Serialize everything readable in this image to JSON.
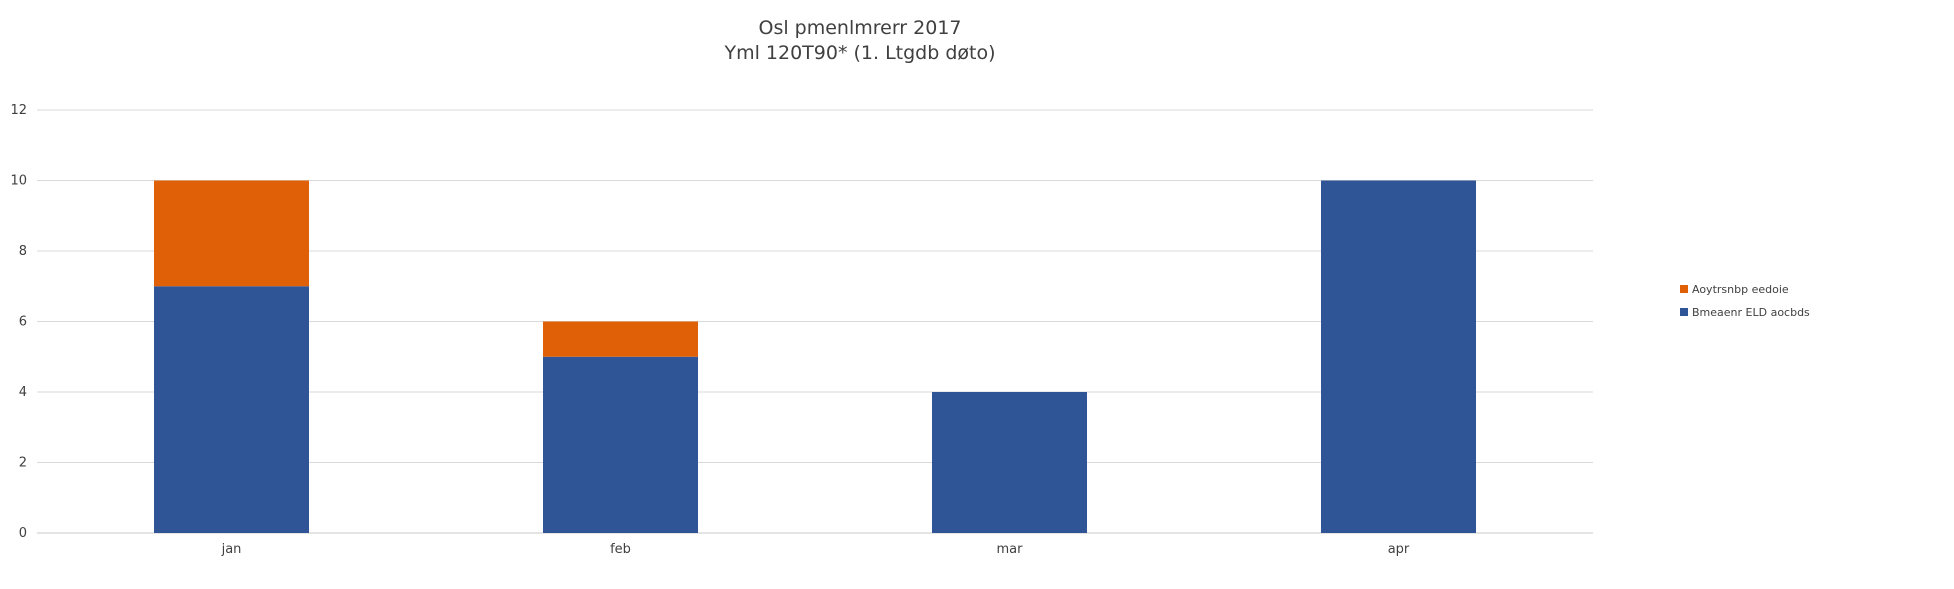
{
  "chart_data": {
    "type": "bar",
    "stacked": true,
    "title": "Osl pmenlmrerr 2017",
    "subtitle": "Yml 120T90* (1. Ltgdb døto)",
    "xlabel": "",
    "ylabel": "",
    "categories": [
      "jan",
      "feb",
      "mar",
      "apr"
    ],
    "ylim": [
      0,
      12
    ],
    "yticks": [
      0,
      2,
      4,
      6,
      8,
      10,
      12
    ],
    "grid": true,
    "legend_position": "right",
    "series": [
      {
        "name": "Bmeaenr ELD aocbds",
        "color": "#2f5597",
        "values": [
          7,
          5,
          4,
          10
        ]
      },
      {
        "name": "Aoytrsnbp eedoie",
        "color": "#e06008",
        "values": [
          3,
          1,
          0,
          0
        ]
      }
    ]
  }
}
